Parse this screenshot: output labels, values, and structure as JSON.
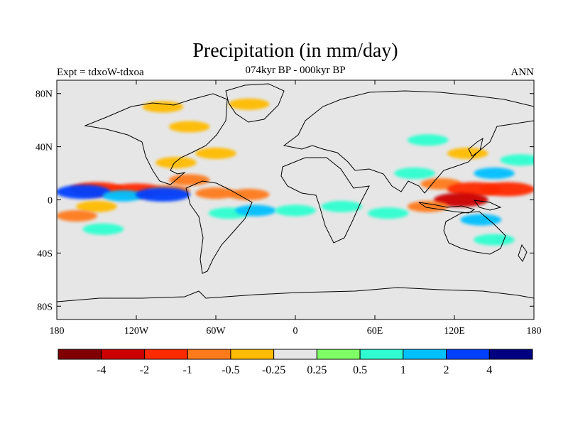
{
  "title": "Precipitation (in mm/day)",
  "left_label": "Expt = tdxoW-tdxoa",
  "center_label": "074kyr BP - 000kyr BP",
  "right_label": "ANN",
  "lat_ticks": [
    {
      "label": "80N",
      "lat": 80
    },
    {
      "label": "40N",
      "lat": 40
    },
    {
      "label": "0",
      "lat": 0
    },
    {
      "label": "40S",
      "lat": -40
    },
    {
      "label": "80S",
      "lat": -80
    }
  ],
  "lon_ticks": [
    {
      "label": "180",
      "lon": -180
    },
    {
      "label": "120W",
      "lon": -120
    },
    {
      "label": "60W",
      "lon": -60
    },
    {
      "label": "0",
      "lon": 0
    },
    {
      "label": "60E",
      "lon": 60
    },
    {
      "label": "120E",
      "lon": 120
    },
    {
      "label": "180",
      "lon": 180
    }
  ],
  "map": {
    "lon_range": [
      -180,
      180
    ],
    "lat_range": [
      -90,
      90
    ],
    "background_color": "#e6e6e6",
    "coast_color": "#000000"
  },
  "colorbar": {
    "colors": [
      "#800000",
      "#cc0000",
      "#ff2a00",
      "#ff7a1a",
      "#ffbb00",
      "#e6e6e6",
      "#7fff66",
      "#2fffd0",
      "#00c0ff",
      "#0040ff",
      "#000080"
    ],
    "labels": [
      "-4",
      "-2",
      "-1",
      "-0.5",
      "-0.25",
      "0.25",
      "0.5",
      "1",
      "2",
      "4"
    ]
  },
  "chart_data": {
    "type": "heatmap",
    "title": "Precipitation (in mm/day)",
    "subtitle": "074kyr BP - 000kyr BP",
    "levels": [
      -4,
      -2,
      -1,
      -0.5,
      -0.25,
      0.25,
      0.5,
      1,
      2,
      4
    ],
    "regions": [
      {
        "lon": -150,
        "lat": 8,
        "value": -1.5
      },
      {
        "lon": -120,
        "lat": 7,
        "value": -2
      },
      {
        "lon": -95,
        "lat": 7,
        "value": -1
      },
      {
        "lon": -60,
        "lat": 5,
        "value": -1
      },
      {
        "lon": -35,
        "lat": 4,
        "value": -1
      },
      {
        "lon": -160,
        "lat": 6,
        "value": 2
      },
      {
        "lon": -130,
        "lat": 3,
        "value": 1
      },
      {
        "lon": -100,
        "lat": 4,
        "value": 2
      },
      {
        "lon": -80,
        "lat": 15,
        "value": -1
      },
      {
        "lon": -90,
        "lat": 28,
        "value": -0.5
      },
      {
        "lon": -60,
        "lat": 35,
        "value": -0.5
      },
      {
        "lon": -40,
        "lat": 44,
        "value": -0.25
      },
      {
        "lon": -80,
        "lat": 55,
        "value": -0.5
      },
      {
        "lon": -100,
        "lat": 70,
        "value": -0.5
      },
      {
        "lon": -35,
        "lat": 72,
        "value": -0.5
      },
      {
        "lon": 20,
        "lat": 78,
        "value": -0.25
      },
      {
        "lon": -50,
        "lat": -10,
        "value": 0.5
      },
      {
        "lon": -30,
        "lat": -8,
        "value": 1
      },
      {
        "lon": 0,
        "lat": -8,
        "value": 0.5
      },
      {
        "lon": 35,
        "lat": -5,
        "value": 0.5
      },
      {
        "lon": 70,
        "lat": -10,
        "value": 0.5
      },
      {
        "lon": -150,
        "lat": -5,
        "value": -0.5
      },
      {
        "lon": -165,
        "lat": -12,
        "value": -1
      },
      {
        "lon": -145,
        "lat": -22,
        "value": 0.5
      },
      {
        "lon": -120,
        "lat": -30,
        "value": -0.25
      },
      {
        "lon": -50,
        "lat": -35,
        "value": -0.25
      },
      {
        "lon": 70,
        "lat": 15,
        "value": -0.25
      },
      {
        "lon": 90,
        "lat": 20,
        "value": 0.5
      },
      {
        "lon": 110,
        "lat": 12,
        "value": -1
      },
      {
        "lon": 135,
        "lat": 8,
        "value": -2
      },
      {
        "lon": 160,
        "lat": 8,
        "value": -2
      },
      {
        "lon": 125,
        "lat": 0,
        "value": -4
      },
      {
        "lon": 100,
        "lat": -5,
        "value": -1
      },
      {
        "lon": 150,
        "lat": 20,
        "value": 1
      },
      {
        "lon": 170,
        "lat": 30,
        "value": 0.5
      },
      {
        "lon": 130,
        "lat": 35,
        "value": -0.5
      },
      {
        "lon": 100,
        "lat": 45,
        "value": 0.5
      },
      {
        "lon": 140,
        "lat": -15,
        "value": 1
      },
      {
        "lon": 150,
        "lat": -30,
        "value": 0.5
      },
      {
        "lon": 80,
        "lat": -40,
        "value": -0.25
      },
      {
        "lon": 20,
        "lat": -45,
        "value": -0.25
      },
      {
        "lon": -30,
        "lat": -55,
        "value": -0.25
      },
      {
        "lon": -150,
        "lat": -70,
        "value": -0.25
      },
      {
        "lon": 60,
        "lat": -72,
        "value": -0.25
      }
    ]
  }
}
